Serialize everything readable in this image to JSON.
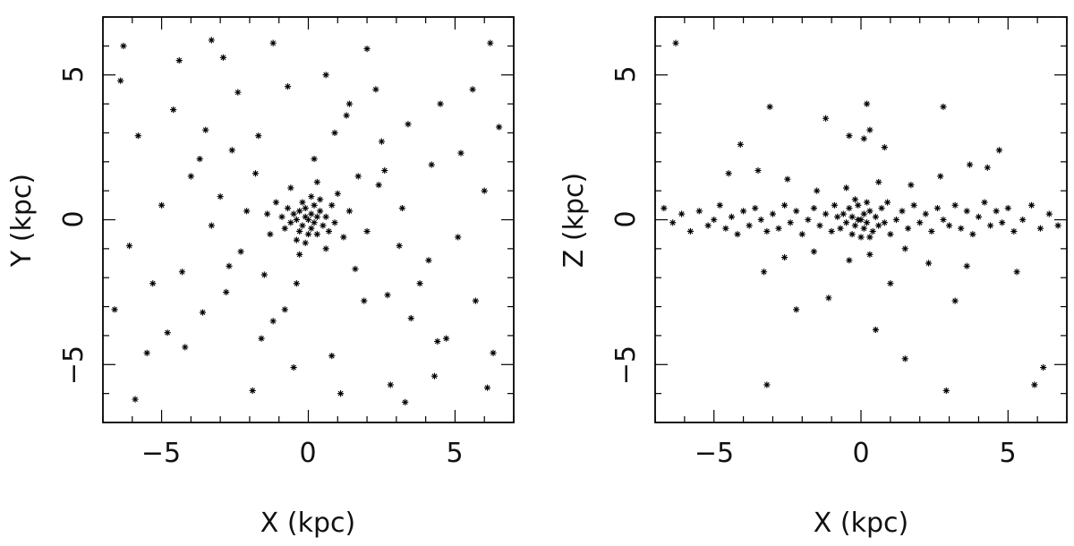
{
  "chart_data": [
    {
      "type": "scatter",
      "marker": "asterisk",
      "marker_color": "#000000",
      "xlabel": "X (kpc)",
      "ylabel": "Y (kpc)",
      "xlim": [
        -7,
        7
      ],
      "ylim": [
        -7,
        7
      ],
      "xticks": [
        -5,
        0,
        5
      ],
      "yticks": [
        -5,
        0,
        5
      ],
      "xtick_labels": [
        "−5",
        "0",
        "5"
      ],
      "ytick_labels": [
        "−5",
        "0",
        "5"
      ],
      "grid": false,
      "points": [
        [
          -0.3,
          0.3
        ],
        [
          -0.1,
          0.1
        ],
        [
          0.1,
          0.2
        ],
        [
          0.2,
          -0.1
        ],
        [
          -0.2,
          -0.2
        ],
        [
          0.0,
          0.0
        ],
        [
          0.3,
          0.1
        ],
        [
          -0.4,
          0.0
        ],
        [
          0.1,
          -0.3
        ],
        [
          -0.1,
          0.4
        ],
        [
          0.4,
          0.3
        ],
        [
          -0.5,
          0.2
        ],
        [
          0.2,
          0.5
        ],
        [
          -0.3,
          -0.4
        ],
        [
          0.5,
          -0.2
        ],
        [
          -0.6,
          -0.1
        ],
        [
          0.0,
          -0.5
        ],
        [
          0.6,
          0.1
        ],
        [
          -0.2,
          0.6
        ],
        [
          0.3,
          -0.5
        ],
        [
          -0.7,
          0.4
        ],
        [
          0.7,
          -0.4
        ],
        [
          -0.4,
          -0.7
        ],
        [
          0.4,
          0.7
        ],
        [
          -0.8,
          -0.3
        ],
        [
          0.8,
          0.5
        ],
        [
          -0.1,
          -0.8
        ],
        [
          0.1,
          0.8
        ],
        [
          -0.9,
          0.1
        ],
        [
          0.9,
          -0.1
        ],
        [
          -1.1,
          0.6
        ],
        [
          1.0,
          0.9
        ],
        [
          -0.6,
          1.1
        ],
        [
          0.6,
          -1.0
        ],
        [
          -1.3,
          -0.5
        ],
        [
          1.2,
          -0.6
        ],
        [
          0.3,
          1.3
        ],
        [
          -0.3,
          -1.2
        ],
        [
          -1.4,
          0.2
        ],
        [
          1.4,
          0.3
        ],
        [
          -1.8,
          1.6
        ],
        [
          1.7,
          1.5
        ],
        [
          -1.5,
          -1.9
        ],
        [
          1.6,
          -1.7
        ],
        [
          -2.1,
          0.3
        ],
        [
          2.0,
          -0.4
        ],
        [
          0.2,
          2.1
        ],
        [
          -0.4,
          -2.2
        ],
        [
          -2.3,
          -1.1
        ],
        [
          2.4,
          1.2
        ],
        [
          -2.6,
          2.4
        ],
        [
          2.5,
          2.7
        ],
        [
          -2.8,
          -2.5
        ],
        [
          2.7,
          -2.6
        ],
        [
          -3.0,
          0.8
        ],
        [
          3.1,
          -0.9
        ],
        [
          0.9,
          3.0
        ],
        [
          -0.8,
          -3.1
        ],
        [
          -3.3,
          -0.2
        ],
        [
          3.2,
          0.4
        ],
        [
          -3.5,
          3.1
        ],
        [
          3.4,
          3.3
        ],
        [
          -3.6,
          -3.2
        ],
        [
          3.5,
          -3.4
        ],
        [
          -4.0,
          1.5
        ],
        [
          4.1,
          -1.4
        ],
        [
          1.4,
          4.0
        ],
        [
          -1.6,
          -4.1
        ],
        [
          -4.3,
          -1.8
        ],
        [
          4.2,
          1.9
        ],
        [
          -4.6,
          3.8
        ],
        [
          4.5,
          4.0
        ],
        [
          -4.8,
          -3.9
        ],
        [
          4.7,
          -4.1
        ],
        [
          -5.0,
          0.5
        ],
        [
          5.1,
          -0.6
        ],
        [
          0.6,
          5.0
        ],
        [
          -0.5,
          -5.1
        ],
        [
          -5.3,
          -2.2
        ],
        [
          5.2,
          2.3
        ],
        [
          -5.8,
          2.9
        ],
        [
          5.7,
          -2.8
        ],
        [
          -2.9,
          5.6
        ],
        [
          2.8,
          -5.7
        ],
        [
          -6.1,
          -0.9
        ],
        [
          6.0,
          1.0
        ],
        [
          1.1,
          -6.0
        ],
        [
          -1.2,
          6.1
        ],
        [
          -6.4,
          4.8
        ],
        [
          6.3,
          -4.6
        ],
        [
          -2.4,
          4.4
        ],
        [
          2.3,
          4.5
        ],
        [
          -4.2,
          -4.4
        ],
        [
          4.4,
          -4.2
        ],
        [
          -1.7,
          2.9
        ],
        [
          1.9,
          -2.8
        ],
        [
          -2.7,
          -1.6
        ],
        [
          2.6,
          1.7
        ],
        [
          -3.7,
          2.1
        ],
        [
          3.8,
          -2.2
        ],
        [
          -1.2,
          -3.5
        ],
        [
          1.3,
          3.6
        ],
        [
          -0.7,
          4.6
        ],
        [
          0.8,
          -4.7
        ],
        [
          -5.5,
          -4.6
        ],
        [
          5.6,
          4.5
        ],
        [
          -6.6,
          -3.1
        ],
        [
          6.5,
          3.2
        ],
        [
          -3.3,
          6.2
        ],
        [
          3.3,
          -6.3
        ],
        [
          -6.3,
          6.0
        ],
        [
          6.2,
          6.1
        ],
        [
          -5.9,
          -6.2
        ],
        [
          6.1,
          -5.8
        ],
        [
          -1.9,
          -5.9
        ],
        [
          2.0,
          5.9
        ],
        [
          -4.4,
          5.5
        ],
        [
          4.3,
          -5.4
        ]
      ]
    },
    {
      "type": "scatter",
      "marker": "asterisk",
      "marker_color": "#000000",
      "xlabel": "X (kpc)",
      "ylabel": "Z (kpc)",
      "xlim": [
        -7,
        7
      ],
      "ylim": [
        -7,
        7
      ],
      "xticks": [
        -5,
        0,
        5
      ],
      "yticks": [
        -5,
        0,
        5
      ],
      "xtick_labels": [
        "−5",
        "0",
        "5"
      ],
      "ytick_labels": [
        "−5",
        "0",
        "5"
      ],
      "grid": false,
      "points": [
        [
          -0.3,
          0.1
        ],
        [
          -0.1,
          0.0
        ],
        [
          0.1,
          0.2
        ],
        [
          0.2,
          -0.1
        ],
        [
          -0.2,
          -0.2
        ],
        [
          0.0,
          0.0
        ],
        [
          0.3,
          0.3
        ],
        [
          -0.4,
          0.4
        ],
        [
          0.1,
          -0.3
        ],
        [
          -0.1,
          0.5
        ],
        [
          0.4,
          -0.4
        ],
        [
          -0.5,
          -0.1
        ],
        [
          0.2,
          0.6
        ],
        [
          -0.3,
          -0.5
        ],
        [
          0.5,
          0.1
        ],
        [
          -0.6,
          0.2
        ],
        [
          0.0,
          -0.6
        ],
        [
          0.6,
          -0.2
        ],
        [
          -0.2,
          0.7
        ],
        [
          0.3,
          -0.6
        ],
        [
          -0.7,
          -0.3
        ],
        [
          0.7,
          0.4
        ],
        [
          -0.8,
          0.1
        ],
        [
          0.8,
          -0.1
        ],
        [
          -0.9,
          0.5
        ],
        [
          0.9,
          0.6
        ],
        [
          -1.0,
          -0.4
        ],
        [
          1.0,
          -0.5
        ],
        [
          -1.2,
          0.2
        ],
        [
          1.2,
          0.0
        ],
        [
          -1.4,
          -0.2
        ],
        [
          1.4,
          0.3
        ],
        [
          -1.6,
          0.4
        ],
        [
          1.6,
          -0.3
        ],
        [
          -1.8,
          0.0
        ],
        [
          1.8,
          0.5
        ],
        [
          -2.0,
          -0.5
        ],
        [
          2.0,
          -0.1
        ],
        [
          -2.2,
          0.3
        ],
        [
          2.2,
          0.2
        ],
        [
          -2.4,
          -0.1
        ],
        [
          2.4,
          -0.4
        ],
        [
          -2.6,
          0.5
        ],
        [
          2.6,
          0.4
        ],
        [
          -2.8,
          -0.3
        ],
        [
          2.8,
          0.0
        ],
        [
          -3.0,
          0.2
        ],
        [
          3.0,
          -0.2
        ],
        [
          -3.2,
          -0.4
        ],
        [
          3.2,
          0.5
        ],
        [
          -3.4,
          0.0
        ],
        [
          3.4,
          -0.3
        ],
        [
          -3.6,
          0.4
        ],
        [
          3.6,
          0.3
        ],
        [
          -3.8,
          -0.2
        ],
        [
          3.8,
          -0.5
        ],
        [
          -4.0,
          0.3
        ],
        [
          4.0,
          0.1
        ],
        [
          -4.2,
          -0.5
        ],
        [
          4.2,
          0.6
        ],
        [
          -4.4,
          0.1
        ],
        [
          4.4,
          -0.2
        ],
        [
          -4.6,
          -0.3
        ],
        [
          4.6,
          0.3
        ],
        [
          -4.8,
          0.5
        ],
        [
          4.8,
          -0.1
        ],
        [
          -5.0,
          0.0
        ],
        [
          5.0,
          0.4
        ],
        [
          -5.2,
          -0.2
        ],
        [
          5.2,
          -0.4
        ],
        [
          -5.5,
          0.3
        ],
        [
          5.5,
          0.0
        ],
        [
          -5.8,
          -0.4
        ],
        [
          5.8,
          0.5
        ],
        [
          -6.1,
          0.2
        ],
        [
          6.1,
          -0.3
        ],
        [
          -6.4,
          -0.1
        ],
        [
          6.4,
          0.2
        ],
        [
          -6.7,
          0.4
        ],
        [
          6.7,
          -0.2
        ],
        [
          -0.5,
          1.1
        ],
        [
          0.6,
          1.3
        ],
        [
          -0.4,
          -1.4
        ],
        [
          0.3,
          -1.2
        ],
        [
          -1.5,
          1.0
        ],
        [
          1.7,
          1.2
        ],
        [
          -1.6,
          -1.1
        ],
        [
          1.5,
          -1.0
        ],
        [
          -2.5,
          1.4
        ],
        [
          2.7,
          1.5
        ],
        [
          -2.6,
          -1.3
        ],
        [
          2.3,
          -1.5
        ],
        [
          -3.5,
          1.7
        ],
        [
          3.7,
          1.9
        ],
        [
          -3.3,
          -1.8
        ],
        [
          3.6,
          -1.6
        ],
        [
          4.3,
          1.8
        ],
        [
          -4.5,
          1.6
        ],
        [
          0.1,
          2.8
        ],
        [
          0.3,
          3.1
        ],
        [
          -0.4,
          2.9
        ],
        [
          -1.2,
          3.5
        ],
        [
          0.8,
          2.5
        ],
        [
          2.8,
          3.9
        ],
        [
          -3.1,
          3.9
        ],
        [
          0.2,
          4.0
        ],
        [
          -4.1,
          2.6
        ],
        [
          4.7,
          2.4
        ],
        [
          -6.3,
          6.1
        ],
        [
          6.2,
          -5.1
        ],
        [
          0.5,
          -3.8
        ],
        [
          1.5,
          -4.8
        ],
        [
          -3.2,
          -5.7
        ],
        [
          2.9,
          -5.9
        ],
        [
          5.9,
          -5.7
        ],
        [
          -2.2,
          -3.1
        ],
        [
          -1.1,
          -2.7
        ],
        [
          1.0,
          -2.2
        ],
        [
          3.2,
          -2.8
        ],
        [
          5.3,
          -1.8
        ]
      ]
    }
  ]
}
